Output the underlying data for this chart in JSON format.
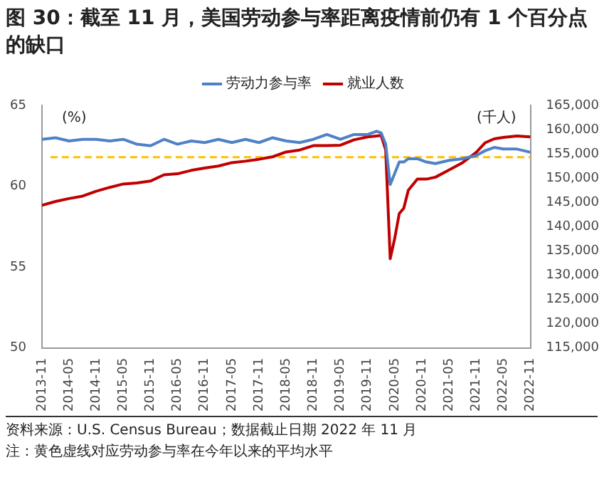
{
  "chart_data": {
    "type": "line",
    "title": "图 30：截至 11 月，美国劳动参与率距离疫情前仍有 1 个百分点的缺口",
    "ylabel": "(%)",
    "y2label": "(千人)",
    "annotations": [
      "资料来源：U.S. Census Bureau；数据截止日期 2022 年 11 月",
      "注：黄色虚线对应劳动参与率在今年以来的平均水平"
    ],
    "x": [
      "2013-11",
      "2014-02",
      "2014-05",
      "2014-08",
      "2014-11",
      "2015-02",
      "2015-05",
      "2015-08",
      "2015-11",
      "2016-02",
      "2016-05",
      "2016-08",
      "2016-11",
      "2017-02",
      "2017-05",
      "2017-08",
      "2017-11",
      "2018-02",
      "2018-05",
      "2018-08",
      "2018-11",
      "2019-02",
      "2019-05",
      "2019-08",
      "2019-11",
      "2020-01",
      "2020-02",
      "2020-03",
      "2020-04",
      "2020-05",
      "2020-06",
      "2020-07",
      "2020-08",
      "2020-10",
      "2020-12",
      "2021-02",
      "2021-05",
      "2021-08",
      "2021-11",
      "2022-01",
      "2022-03",
      "2022-05",
      "2022-08",
      "2022-11"
    ],
    "series": [
      {
        "name": "劳动力参与率",
        "color": "#4f81c7",
        "values": [
          62.9,
          63.0,
          62.8,
          62.9,
          62.9,
          62.8,
          62.9,
          62.6,
          62.5,
          62.9,
          62.6,
          62.8,
          62.7,
          62.9,
          62.7,
          62.9,
          62.7,
          63.0,
          62.8,
          62.7,
          62.9,
          63.2,
          62.9,
          63.2,
          63.2,
          63.4,
          63.3,
          62.6,
          60.1,
          60.8,
          61.5,
          61.5,
          61.7,
          61.7,
          61.5,
          61.4,
          61.6,
          61.7,
          61.9,
          62.2,
          62.4,
          62.3,
          62.3,
          62.1
        ]
      },
      {
        "name": "就业人数",
        "color": "#c00000",
        "axis": "y2",
        "values": [
          144400,
          145200,
          145800,
          146300,
          147300,
          148100,
          148800,
          149000,
          149400,
          150700,
          150900,
          151600,
          152100,
          152500,
          153200,
          153500,
          153900,
          154400,
          155400,
          155800,
          156700,
          156700,
          156800,
          157900,
          158500,
          158700,
          158800,
          155800,
          133400,
          137600,
          142700,
          143800,
          147500,
          149800,
          149800,
          150200,
          151700,
          153200,
          155300,
          157300,
          158100,
          158400,
          158700,
          158500
        ]
      }
    ],
    "xlim": [
      "2013-11",
      "2022-11"
    ],
    "xticks": [
      "2013-11",
      "2014-05",
      "2014-11",
      "2015-05",
      "2015-11",
      "2016-05",
      "2016-11",
      "2017-05",
      "2017-11",
      "2018-05",
      "2018-11",
      "2019-05",
      "2019-11",
      "2020-05",
      "2020-11",
      "2021-05",
      "2021-11",
      "2022-05",
      "2022-11"
    ],
    "ylim": [
      50,
      65
    ],
    "yticks": [
      50,
      55,
      60,
      65
    ],
    "y2lim": [
      115000,
      165000
    ],
    "y2ticks": [
      {
        "value": 115000,
        "label": "115,000"
      },
      {
        "value": 120000,
        "label": "120,000"
      },
      {
        "value": 125000,
        "label": "125,000"
      },
      {
        "value": 130000,
        "label": "130,000"
      },
      {
        "value": 135000,
        "label": "135,000"
      },
      {
        "value": 140000,
        "label": "140,000"
      },
      {
        "value": 145000,
        "label": "145,000"
      },
      {
        "value": 150000,
        "label": "150,000"
      },
      {
        "value": 155000,
        "label": "155,000"
      },
      {
        "value": 160000,
        "label": "160,000"
      },
      {
        "value": 165000,
        "label": "165,000"
      }
    ],
    "ref_lines": [
      {
        "axis": "y",
        "value": 61.8,
        "color": "#ffc000",
        "line_style": "dashed"
      }
    ],
    "legend": "top",
    "grid": false,
    "marker": "none",
    "line_style": "solid"
  }
}
